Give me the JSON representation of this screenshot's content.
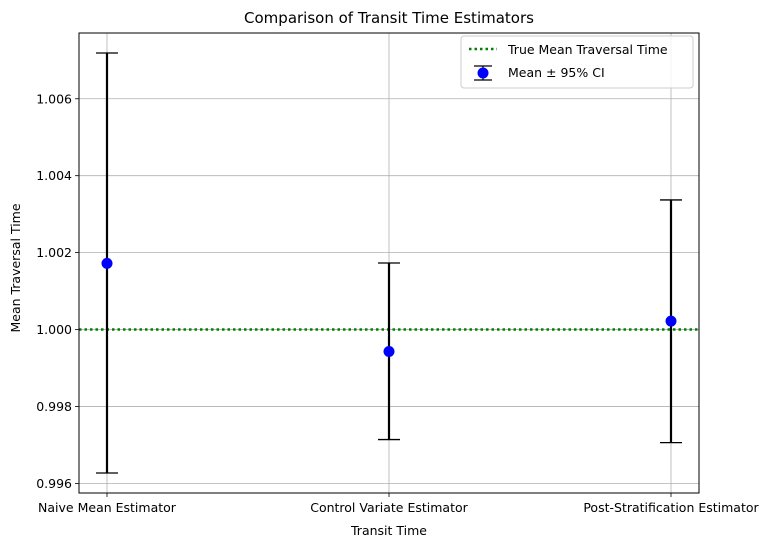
{
  "chart_data": {
    "type": "scatter",
    "title": "Comparison of Transit Time Estimators",
    "xlabel": "Transit Time",
    "ylabel": "Mean Traversal Time",
    "categories": [
      "Naive Mean Estimator",
      "Control Variate Estimator",
      "Post-Stratification Estimator"
    ],
    "series": [
      {
        "name": "Mean ± 95% CI",
        "color": "#0000ff",
        "values": [
          1.00172,
          0.99943,
          1.00022
        ],
        "ci_lower": [
          0.99627,
          0.99714,
          0.99706
        ],
        "ci_upper": [
          1.00719,
          1.00173,
          1.00337
        ]
      }
    ],
    "reference_line": {
      "name": "True Mean Traversal Time",
      "value": 1.0,
      "color": "#008000",
      "style": "dotted"
    },
    "yticks": [
      0.996,
      0.998,
      1.0,
      1.002,
      1.004,
      1.006
    ],
    "ytick_labels": [
      "0.996",
      "0.998",
      "1.000",
      "1.002",
      "1.004",
      "1.006"
    ],
    "ylim": [
      0.99575,
      1.00771
    ],
    "grid": true,
    "legend_position": "top-right"
  }
}
